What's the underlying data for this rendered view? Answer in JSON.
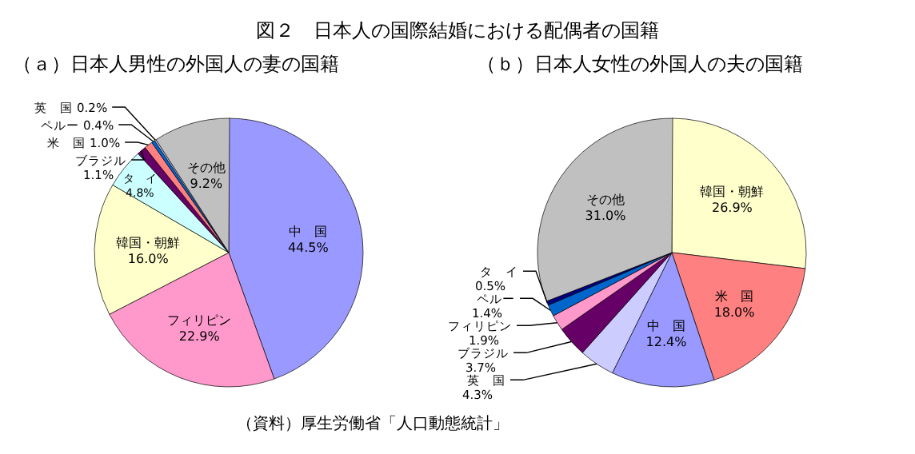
{
  "chart_data": [
    {
      "type": "pie",
      "title": "図２　日本人の国際結婚における配偶者の国籍",
      "subtitle": "（ａ）日本人男性の外国人の妻の国籍",
      "categories": [
        "中　国",
        "フィリピン",
        "韓国・朝鮮",
        "タ　イ",
        "ブラジル",
        "米　国",
        "ペルー",
        "英　国",
        "その他"
      ],
      "values": [
        44.5,
        22.9,
        16.0,
        4.8,
        1.1,
        1.0,
        0.4,
        0.2,
        9.2
      ],
      "value_labels": [
        "44.5%",
        "22.9%",
        "16.0%",
        "4.8%",
        "1.1%",
        "1.0%",
        "0.4%",
        "0.2%",
        "9.2%"
      ],
      "colors": [
        "#9999ff",
        "#ff99cc",
        "#ffffcc",
        "#ccffff",
        "#660066",
        "#ff8080",
        "#0066cc",
        "#ccccff",
        "#c0c0c0"
      ]
    },
    {
      "type": "pie",
      "subtitle": "（ｂ）日本人女性の外国人の夫の国籍",
      "categories": [
        "韓国・朝鮮",
        "米　国",
        "中　国",
        "英　国",
        "ブラジル",
        "フィリピン",
        "ペルー",
        "タ　イ",
        "その他"
      ],
      "values": [
        26.9,
        18.0,
        12.4,
        4.3,
        3.7,
        1.9,
        1.4,
        0.5,
        31.0
      ],
      "value_labels": [
        "26.9%",
        "18.0%",
        "12.4%",
        "4.3%",
        "3.7%",
        "1.9%",
        "1.4%",
        "0.5%",
        "31.0%"
      ],
      "colors": [
        "#ffffcc",
        "#ff8080",
        "#9999ff",
        "#ccccff",
        "#660066",
        "#ff99cc",
        "#0066cc",
        "#000080",
        "#c0c0c0"
      ],
      "annotations": [
        "（資料）厚生労働省「人口動態統計」"
      ]
    }
  ]
}
